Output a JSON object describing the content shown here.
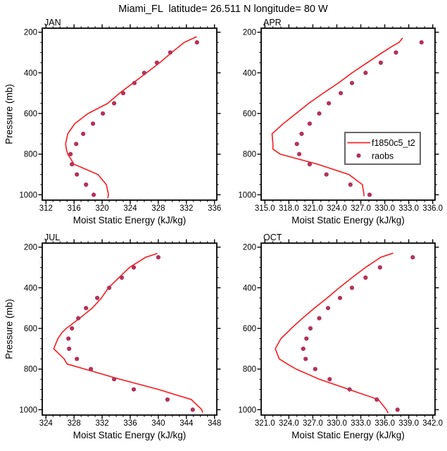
{
  "title": "Miami_FL  latitude= 26.511 N longitude= 80 W",
  "colors": {
    "line": "#f5262a",
    "dot": "#b23259",
    "frame": "#000000",
    "legend_border": "#686868"
  },
  "legend": {
    "entries": [
      {
        "type": "line",
        "label": "f1850c5_t2"
      },
      {
        "type": "dot",
        "label": "raobs"
      }
    ]
  },
  "axes_shared": {
    "ylabel": "Pressure (mb)",
    "xlabel": "Moist Static Energy (kJ/kg)",
    "yticks": [
      200,
      400,
      600,
      800,
      1000
    ],
    "ytick_labels": [
      "200",
      "400",
      "600",
      "800",
      "1000"
    ],
    "y_minor_step": 50
  },
  "chart_data": [
    {
      "type": "line",
      "panel_label": "JAN",
      "xlabel": "Moist Static Energy (kJ/kg)",
      "ylabel": "Pressure (mb)",
      "xticks": [
        312,
        316,
        320,
        324,
        328,
        332,
        336
      ],
      "xtick_labels": [
        "312",
        "316",
        "320",
        "324",
        "328",
        "332",
        "336"
      ],
      "x_minor_step": 1,
      "xlim": [
        311.5,
        336.3
      ],
      "ylim": [
        1025,
        180
      ],
      "yticks": [
        200,
        400,
        600,
        800,
        1000
      ],
      "ytick_labels": [
        "200",
        "400",
        "600",
        "800",
        "1000"
      ],
      "series": [
        {
          "name": "f1850c5_t2",
          "style": "line",
          "points_p_v": [
            [
              1015,
              320.8
            ],
            [
              1000,
              320.9
            ],
            [
              950,
              320.6
            ],
            [
              900,
              319.4
            ],
            [
              850,
              316.0
            ],
            [
              800,
              315.1
            ],
            [
              775,
              314.9
            ],
            [
              750,
              314.8
            ],
            [
              700,
              315.1
            ],
            [
              650,
              316.1
            ],
            [
              600,
              318.0
            ],
            [
              550,
              320.8
            ],
            [
              500,
              322.5
            ],
            [
              450,
              324.4
            ],
            [
              400,
              326.3
            ],
            [
              350,
              328.2
            ],
            [
              300,
              329.9
            ],
            [
              250,
              331.7
            ],
            [
              223,
              333.4
            ]
          ]
        },
        {
          "name": "raobs",
          "style": "scatter",
          "points_p_v": [
            [
              1000,
              318.8
            ],
            [
              950,
              317.7
            ],
            [
              900,
              316.4
            ],
            [
              850,
              315.7
            ],
            [
              800,
              315.5
            ],
            [
              750,
              316.3
            ],
            [
              700,
              317.3
            ],
            [
              650,
              318.7
            ],
            [
              600,
              320.1
            ],
            [
              550,
              321.7
            ],
            [
              500,
              323.0
            ],
            [
              450,
              324.6
            ],
            [
              400,
              326.0
            ],
            [
              350,
              327.8
            ],
            [
              300,
              329.7
            ],
            [
              250,
              333.5
            ]
          ]
        }
      ]
    },
    {
      "type": "line",
      "panel_label": "APR",
      "xlabel": "Moist Static Energy (kJ/kg)",
      "ylabel": "",
      "xticks": [
        315,
        318,
        321,
        324,
        327,
        330,
        333,
        336
      ],
      "xtick_labels": [
        "315.0",
        "318.0",
        "321.0",
        "324.0",
        "327.0",
        "330.0",
        "333.0",
        "336.0"
      ],
      "x_minor_step": 1,
      "xlim": [
        314.9,
        336.1
      ],
      "ylim": [
        1025,
        180
      ],
      "yticks": [
        200,
        400,
        600,
        800,
        1000
      ],
      "ytick_labels": [
        "200",
        "400",
        "600",
        "800",
        "1000"
      ],
      "series": [
        {
          "name": "f1850c5_t2",
          "style": "line",
          "points_p_v": [
            [
              1005,
              327.4
            ],
            [
              1000,
              327.4
            ],
            [
              950,
              327.2
            ],
            [
              900,
              325.5
            ],
            [
              850,
              321.6
            ],
            [
              800,
              316.9
            ],
            [
              775,
              316.0
            ],
            [
              750,
              316.0
            ],
            [
              700,
              315.9
            ],
            [
              650,
              317.3
            ],
            [
              600,
              318.9
            ],
            [
              550,
              320.5
            ],
            [
              500,
              322.3
            ],
            [
              450,
              324.2
            ],
            [
              400,
              325.9
            ],
            [
              350,
              327.8
            ],
            [
              300,
              329.7
            ],
            [
              270,
              330.9
            ],
            [
              250,
              331.8
            ],
            [
              240,
              332.0
            ],
            [
              230,
              332.2
            ]
          ]
        },
        {
          "name": "raobs",
          "style": "scatter",
          "points_p_v": [
            [
              1000,
              328.1
            ],
            [
              950,
              325.7
            ],
            [
              900,
              322.7
            ],
            [
              850,
              320.6
            ],
            [
              800,
              319.3
            ],
            [
              750,
              319.0
            ],
            [
              700,
              319.6
            ],
            [
              650,
              320.6
            ],
            [
              600,
              321.8
            ],
            [
              550,
              323.0
            ],
            [
              500,
              324.5
            ],
            [
              450,
              325.9
            ],
            [
              400,
              327.6
            ],
            [
              350,
              329.5
            ],
            [
              300,
              331.4
            ],
            [
              250,
              334.6
            ]
          ]
        }
      ]
    },
    {
      "type": "line",
      "panel_label": "JUL",
      "xlabel": "Moist Static Energy (kJ/kg)",
      "ylabel": "Pressure (mb)",
      "xticks": [
        324,
        328,
        332,
        336,
        340,
        344,
        348
      ],
      "xtick_labels": [
        "324",
        "328",
        "332",
        "336",
        "340",
        "344",
        "348"
      ],
      "x_minor_step": 1,
      "xlim": [
        323.5,
        348.3
      ],
      "ylim": [
        1025,
        180
      ],
      "yticks": [
        200,
        400,
        600,
        800,
        1000
      ],
      "ytick_labels": [
        "200",
        "400",
        "600",
        "800",
        "1000"
      ],
      "series": [
        {
          "name": "f1850c5_t2",
          "style": "line",
          "points_p_v": [
            [
              1012,
              346.3
            ],
            [
              1000,
              346.2
            ],
            [
              950,
              344.7
            ],
            [
              900,
              340.0
            ],
            [
              850,
              334.5
            ],
            [
              800,
              329.5
            ],
            [
              775,
              327.0
            ],
            [
              750,
              326.6
            ],
            [
              700,
              325.1
            ],
            [
              650,
              325.7
            ],
            [
              620,
              326.3
            ],
            [
              600,
              326.9
            ],
            [
              550,
              328.8
            ],
            [
              500,
              330.6
            ],
            [
              450,
              331.9
            ],
            [
              400,
              332.9
            ],
            [
              350,
              334.4
            ],
            [
              300,
              335.9
            ],
            [
              250,
              338.2
            ],
            [
              232,
              339.8
            ]
          ]
        },
        {
          "name": "raobs",
          "style": "scatter",
          "points_p_v": [
            [
              1000,
              344.9
            ],
            [
              950,
              341.3
            ],
            [
              900,
              336.5
            ],
            [
              850,
              333.7
            ],
            [
              800,
              330.4
            ],
            [
              750,
              328.4
            ],
            [
              700,
              327.3
            ],
            [
              650,
              327.2
            ],
            [
              600,
              327.7
            ],
            [
              550,
              328.6
            ],
            [
              500,
              329.7
            ],
            [
              450,
              331.3
            ],
            [
              400,
              333.0
            ],
            [
              350,
              334.8
            ],
            [
              300,
              336.5
            ],
            [
              250,
              340.0
            ]
          ]
        }
      ]
    },
    {
      "type": "line",
      "panel_label": "OCT",
      "xlabel": "Moist Static Energy (kJ/kg)",
      "ylabel": "",
      "xticks": [
        321,
        324,
        327,
        330,
        333,
        336,
        339,
        342
      ],
      "xtick_labels": [
        "321.0",
        "324.0",
        "327.0",
        "330.0",
        "333.0",
        "336.0",
        "339.0",
        "342.0"
      ],
      "x_minor_step": 1,
      "xlim": [
        320.9,
        342.1
      ],
      "ylim": [
        1025,
        180
      ],
      "yticks": [
        200,
        400,
        600,
        800,
        1000
      ],
      "ytick_labels": [
        "200",
        "400",
        "600",
        "800",
        "1000"
      ],
      "series": [
        {
          "name": "f1850c5_t2",
          "style": "line",
          "points_p_v": [
            [
              1015,
              336.4
            ],
            [
              1000,
              336.2
            ],
            [
              950,
              335.2
            ],
            [
              900,
              331.5
            ],
            [
              850,
              327.8
            ],
            [
              800,
              324.9
            ],
            [
              775,
              323.8
            ],
            [
              750,
              322.8
            ],
            [
              700,
              322.3
            ],
            [
              650,
              323.0
            ],
            [
              620,
              323.8
            ],
            [
              600,
              324.3
            ],
            [
              550,
              325.7
            ],
            [
              500,
              327.2
            ],
            [
              450,
              328.8
            ],
            [
              400,
              330.3
            ],
            [
              350,
              331.9
            ],
            [
              300,
              333.6
            ],
            [
              250,
              335.5
            ],
            [
              230,
              337.0
            ]
          ]
        },
        {
          "name": "raobs",
          "style": "scatter",
          "points_p_v": [
            [
              1000,
              337.6
            ],
            [
              950,
              335.0
            ],
            [
              900,
              331.6
            ],
            [
              850,
              329.1
            ],
            [
              800,
              327.3
            ],
            [
              750,
              326.1
            ],
            [
              700,
              325.8
            ],
            [
              650,
              326.2
            ],
            [
              600,
              326.7
            ],
            [
              550,
              327.8
            ],
            [
              500,
              328.9
            ],
            [
              450,
              330.4
            ],
            [
              400,
              331.9
            ],
            [
              350,
              333.6
            ],
            [
              300,
              335.4
            ],
            [
              250,
              339.5
            ]
          ]
        }
      ]
    }
  ]
}
